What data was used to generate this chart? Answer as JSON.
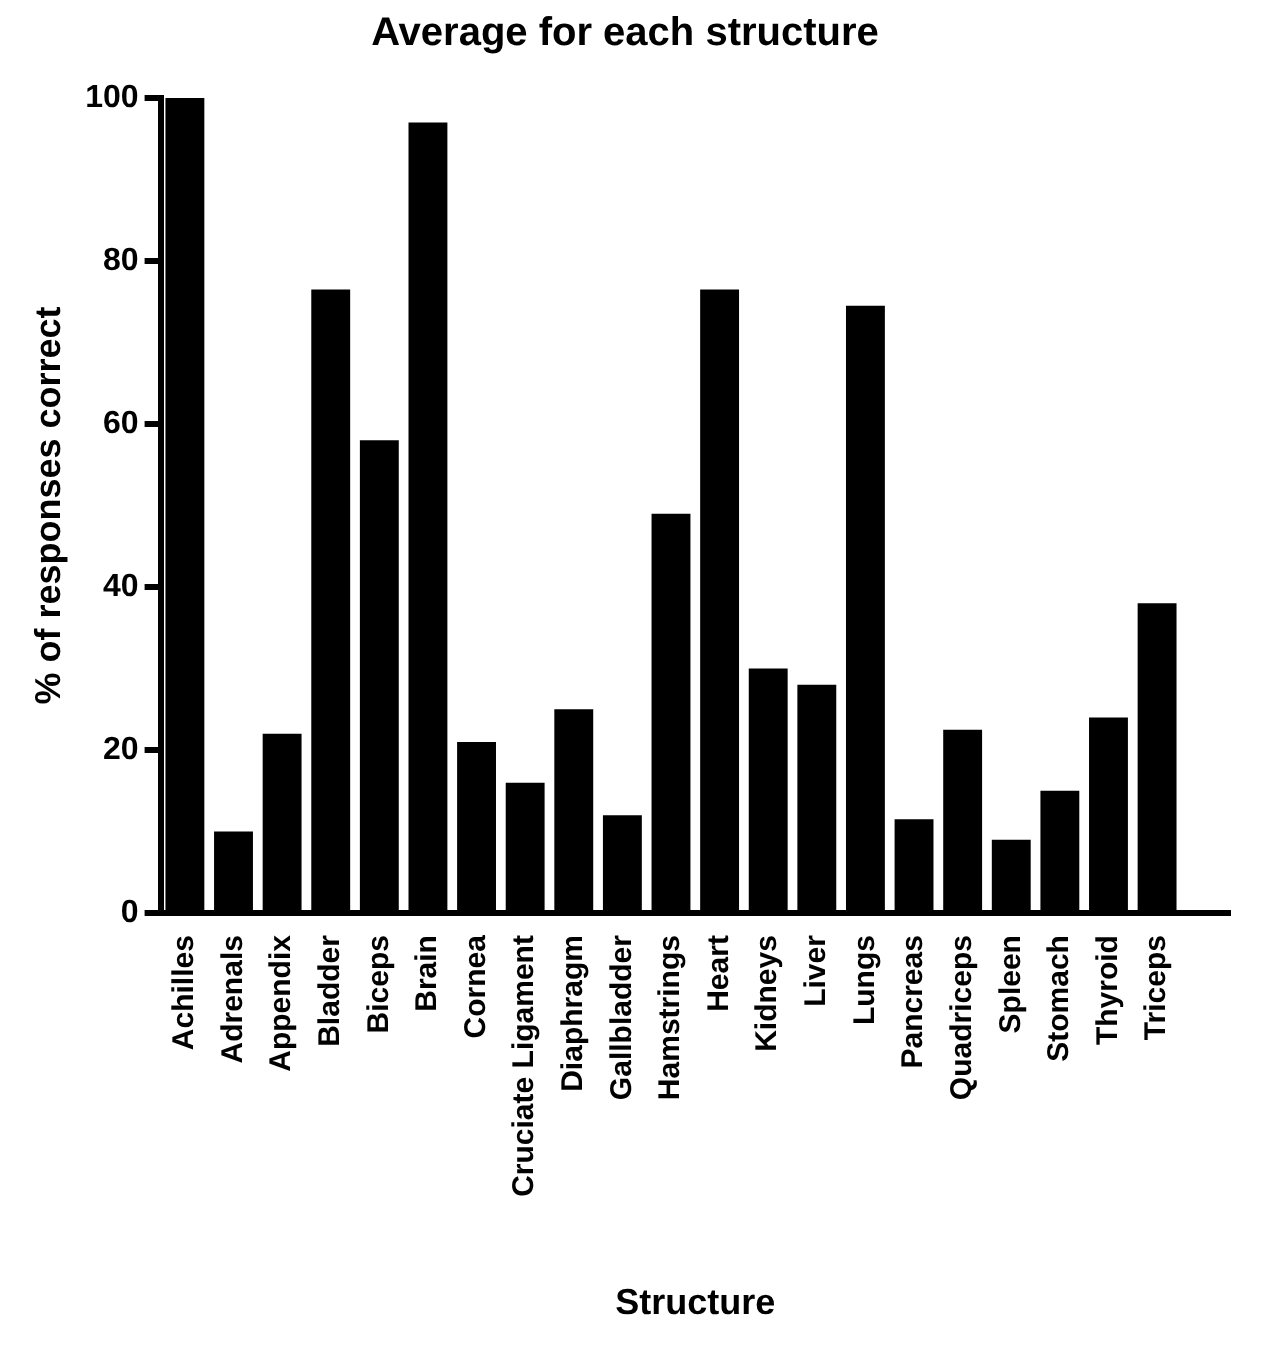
{
  "chart_data": {
    "type": "bar",
    "title": "Average for each structure",
    "xlabel": "Structure",
    "ylabel": "% of responses correct",
    "categories": [
      "Achilles",
      "Adrenals",
      "Appendix",
      "Bladder",
      "Biceps",
      "Brain",
      "Cornea",
      "Cruciate Ligament",
      "Diaphragm",
      "Gallbladder",
      "Hamstrings",
      "Heart",
      "Kidneys",
      "Liver",
      "Lungs",
      "Pancreas",
      "Quadriceps",
      "Spleen",
      "Stomach",
      "Thyroid",
      "Triceps",
      null
    ],
    "values": [
      100,
      10,
      22,
      76.5,
      58,
      97,
      21,
      16,
      25,
      12,
      49,
      76.5,
      30,
      28,
      74.5,
      11.5,
      22.5,
      9,
      15,
      24,
      38,
      null
    ],
    "color": "#000000",
    "ylim": [
      0,
      100
    ],
    "yticks": [
      0,
      20,
      40,
      60,
      80,
      100
    ],
    "grid": false
  }
}
